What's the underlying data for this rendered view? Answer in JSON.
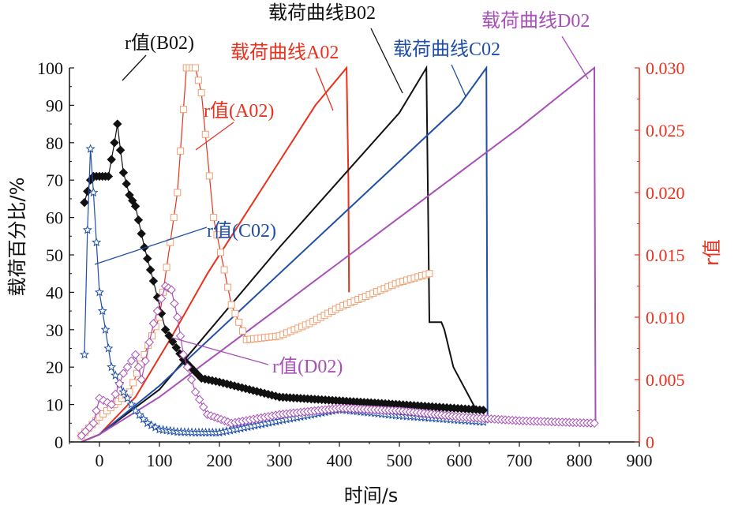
{
  "chart_data": {
    "type": "line",
    "xlabel": "时间/s",
    "ylabel_left": "载荷百分比/%",
    "ylabel_right": "r值",
    "xlim": [
      -50,
      900
    ],
    "ylim_left": [
      0,
      100
    ],
    "ylim_right": [
      0,
      0.03
    ],
    "x_ticks": [
      "0",
      "100",
      "200",
      "300",
      "400",
      "500",
      "600",
      "700",
      "800",
      "900"
    ],
    "y_left_ticks": [
      "0",
      "10",
      "20",
      "30",
      "40",
      "50",
      "60",
      "70",
      "80",
      "90",
      "100"
    ],
    "y_right_ticks": [
      "0",
      "0.005",
      "0.010",
      "0.015",
      "0.020",
      "0.025",
      "0.030"
    ],
    "colors": {
      "A02": "#e8321e",
      "B02": "#111111",
      "C02": "#1f4fa8",
      "D02": "#a84fb8",
      "right_axis": "#e8321e"
    },
    "series": [
      {
        "name": "载荷曲线A02",
        "axis": "left",
        "color": "#e8321e",
        "x": [
          -30,
          0,
          60,
          120,
          180,
          240,
          300,
          360,
          412,
          415,
          416
        ],
        "y": [
          0,
          2,
          12,
          28,
          45,
          60,
          75,
          90,
          100,
          70,
          40
        ]
      },
      {
        "name": "载荷曲线B02",
        "axis": "left",
        "color": "#111111",
        "x": [
          -30,
          0,
          100,
          200,
          300,
          400,
          500,
          545,
          548,
          550,
          555,
          570,
          575,
          590,
          630
        ],
        "y": [
          0,
          2,
          14,
          33,
          52,
          70,
          88,
          100,
          60,
          32,
          32,
          32,
          30,
          20,
          8
        ]
      },
      {
        "name": "载荷曲线C02",
        "axis": "left",
        "color": "#1f4fa8",
        "x": [
          -30,
          0,
          100,
          200,
          300,
          400,
          500,
          600,
          645,
          647
        ],
        "y": [
          0,
          2,
          15,
          30,
          45,
          60,
          75,
          90,
          100,
          5
        ]
      },
      {
        "name": "载荷曲线D02",
        "axis": "left",
        "color": "#a84fb8",
        "x": [
          -30,
          0,
          100,
          200,
          300,
          400,
          500,
          600,
          700,
          825,
          827
        ],
        "y": [
          0,
          2,
          12,
          24,
          36,
          48,
          60,
          72,
          84,
          100,
          5
        ]
      },
      {
        "name": "r值(A02)",
        "axis": "right",
        "color": "#e8321e",
        "marker": "square",
        "x": [
          -30,
          0,
          50,
          100,
          130,
          145,
          160,
          170,
          190,
          220,
          245,
          300,
          350,
          400,
          450,
          500,
          550
        ],
        "y": [
          0.0005,
          0.002,
          0.004,
          0.01,
          0.02,
          0.03,
          0.03,
          0.028,
          0.018,
          0.011,
          0.0082,
          0.0085,
          0.0095,
          0.0108,
          0.0118,
          0.0128,
          0.0135
        ]
      },
      {
        "name": "r值(B02)",
        "axis": "left",
        "color": "#111111",
        "marker": "diamond",
        "x": [
          -25,
          -15,
          -10,
          0,
          15,
          25,
          30,
          35,
          40,
          50,
          60,
          75,
          90,
          110,
          140,
          170,
          200,
          250,
          300,
          400,
          500,
          640
        ],
        "y": [
          64,
          70,
          71,
          71,
          71,
          80,
          85,
          78,
          72,
          66,
          63,
          52,
          43,
          30,
          22,
          17,
          16,
          14,
          12,
          11,
          10,
          8.5
        ]
      },
      {
        "name": "r值(C02)",
        "axis": "right",
        "color": "#1f4fa8",
        "marker": "star",
        "x": [
          -25,
          -20,
          -15,
          -10,
          -5,
          0,
          10,
          20,
          40,
          60,
          80,
          100,
          130,
          160,
          200,
          300,
          400,
          500,
          640
        ],
        "y": [
          0.007,
          0.017,
          0.0235,
          0.02,
          0.016,
          0.012,
          0.009,
          0.006,
          0.004,
          0.0025,
          0.0015,
          0.001,
          0.0008,
          0.00075,
          0.00075,
          0.0017,
          0.0026,
          0.0021,
          0.0016
        ]
      },
      {
        "name": "r值(D02)",
        "axis": "right",
        "color": "#a84fb8",
        "marker": "diamond-open",
        "x": [
          -30,
          -10,
          0,
          20,
          40,
          60,
          70,
          90,
          110,
          120,
          130,
          140,
          160,
          180,
          220,
          300,
          400,
          500,
          600,
          700,
          825
        ],
        "y": [
          0.0005,
          0.0015,
          0.0035,
          0.003,
          0.0055,
          0.007,
          0.005,
          0.0095,
          0.0125,
          0.0122,
          0.01,
          0.007,
          0.004,
          0.0022,
          0.0015,
          0.0022,
          0.0027,
          0.0025,
          0.002,
          0.0017,
          0.0015
        ]
      }
    ],
    "annotations": [
      {
        "text": "载荷曲线B02",
        "color": "#111111"
      },
      {
        "text": "载荷曲线D02",
        "color": "#a84fb8"
      },
      {
        "text": "载荷曲线A02",
        "color": "#e8321e"
      },
      {
        "text": "载荷曲线C02",
        "color": "#1f4fa8"
      },
      {
        "text": "r值(B02)",
        "color": "#111111"
      },
      {
        "text": "r值(A02)",
        "color": "#e8321e"
      },
      {
        "text": "r值(C02)",
        "color": "#1f4fa8"
      },
      {
        "text": "r值(D02)",
        "color": "#a84fb8"
      }
    ]
  }
}
